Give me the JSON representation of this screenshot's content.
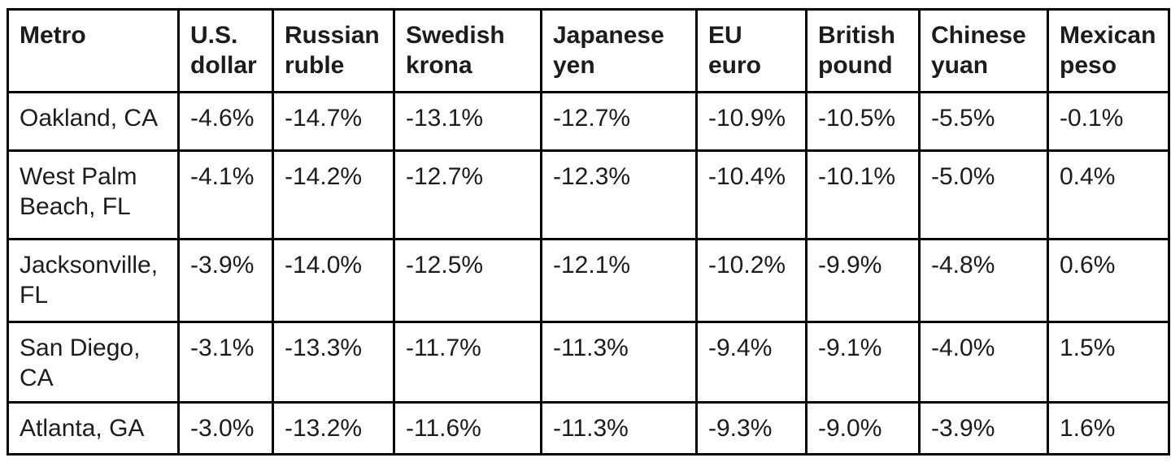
{
  "page": {
    "background_color": "#ffffff",
    "text_color": "#1c1c1c",
    "border_color": "#000000"
  },
  "chart_data": {
    "type": "table",
    "columns": [
      "Metro",
      "U.S. dollar",
      "Russian ruble",
      "Swedish krona",
      "Japanese yen",
      "EU euro",
      "British pound",
      "Chinese yuan",
      "Mexican peso"
    ],
    "rows": [
      {
        "metro": "Oakland, CA",
        "values": [
          "-4.6%",
          "-14.7%",
          "-13.1%",
          "-12.7%",
          "-10.9%",
          "-10.5%",
          "-5.5%",
          "-0.1%"
        ]
      },
      {
        "metro": "West Palm Beach, FL",
        "values": [
          "-4.1%",
          "-14.2%",
          "-12.7%",
          "-12.3%",
          "-10.4%",
          "-10.1%",
          "-5.0%",
          "0.4%"
        ]
      },
      {
        "metro": "Jacksonville, FL",
        "values": [
          "-3.9%",
          "-14.0%",
          "-12.5%",
          "-12.1%",
          "-10.2%",
          "-9.9%",
          "-4.8%",
          "0.6%"
        ]
      },
      {
        "metro": "San Diego, CA",
        "values": [
          "-3.1%",
          "-13.3%",
          "-11.7%",
          "-11.3%",
          "-9.4%",
          "-9.1%",
          "-4.0%",
          "1.5%"
        ]
      },
      {
        "metro": "Atlanta, GA",
        "values": [
          "-3.0%",
          "-13.2%",
          "-11.6%",
          "-11.3%",
          "-9.3%",
          "-9.0%",
          "-3.9%",
          "1.6%"
        ]
      }
    ]
  }
}
